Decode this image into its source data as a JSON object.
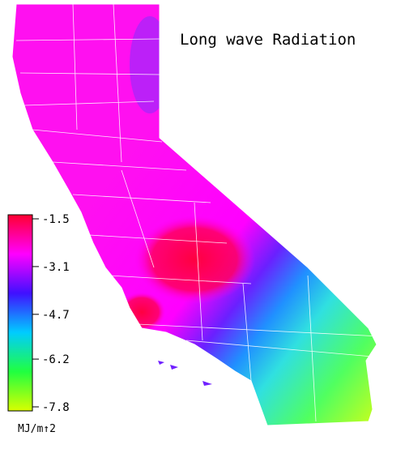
{
  "map": {
    "title": "Long wave Radiation",
    "colorbar": {
      "lim": [
        -7.8,
        -1.5
      ],
      "ticks": [
        -1.5,
        -3.1,
        -4.7,
        -6.2,
        -7.8
      ],
      "unit": "MJ/m↑2",
      "colors": [
        "#ff0030",
        "#ff00ff",
        "#4010ff",
        "#00ccff",
        "#20ff40",
        "#d8ff00"
      ]
    }
  }
}
